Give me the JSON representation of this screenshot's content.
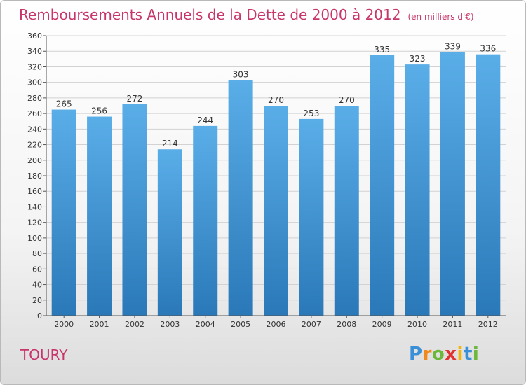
{
  "chart_data": {
    "type": "bar",
    "title": "Remboursements Annuels de la Dette de 2000 à 2012",
    "unit_note": "(en milliers d'€)",
    "categories": [
      "2000",
      "2001",
      "2002",
      "2003",
      "2004",
      "2005",
      "2006",
      "2007",
      "2008",
      "2009",
      "2010",
      "2011",
      "2012"
    ],
    "values": [
      265,
      256,
      272,
      214,
      244,
      303,
      270,
      253,
      270,
      335,
      323,
      339,
      336
    ],
    "ylim": [
      0,
      360
    ],
    "yticks": [
      0,
      20,
      40,
      60,
      80,
      100,
      120,
      140,
      160,
      180,
      200,
      220,
      240,
      260,
      280,
      300,
      320,
      340,
      360
    ],
    "grid": true,
    "bar_color_top": "#5aaee8",
    "bar_color_bottom": "#2a78b8"
  },
  "footer": {
    "town": "TOURY",
    "logo_letters": [
      {
        "ch": "P",
        "color": "#3a8fd6"
      },
      {
        "ch": "r",
        "color": "#f08a1c"
      },
      {
        "ch": "o",
        "color": "#6cb83a"
      },
      {
        "ch": "x",
        "color": "#e2322f"
      },
      {
        "ch": "i",
        "color": "#f5b400"
      },
      {
        "ch": "t",
        "color": "#3a8fd6"
      },
      {
        "ch": "i",
        "color": "#6cb83a"
      }
    ]
  }
}
